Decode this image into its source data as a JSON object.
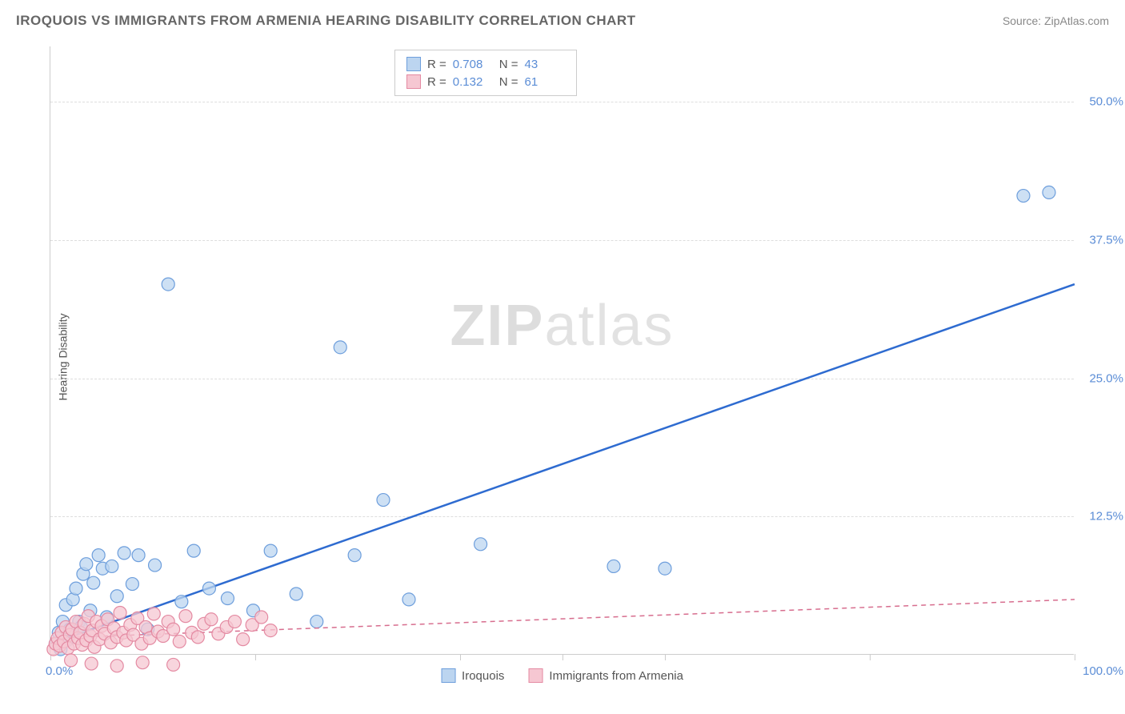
{
  "header": {
    "title": "IROQUOIS VS IMMIGRANTS FROM ARMENIA HEARING DISABILITY CORRELATION CHART",
    "source": "Source: ZipAtlas.com"
  },
  "ylabel": "Hearing Disability",
  "watermark": {
    "bold": "ZIP",
    "light": "atlas"
  },
  "axes": {
    "xlim": [
      0,
      100
    ],
    "ylim": [
      0,
      55
    ],
    "x_origin_label": "0.0%",
    "x_max_label": "100.0%",
    "y_ticks": [
      {
        "value": 12.5,
        "label": "12.5%"
      },
      {
        "value": 25.0,
        "label": "25.0%"
      },
      {
        "value": 37.5,
        "label": "37.5%"
      },
      {
        "value": 50.0,
        "label": "50.0%"
      }
    ],
    "x_tick_positions": [
      0,
      20,
      40,
      50,
      60,
      80,
      100
    ],
    "grid_color": "#dddddd"
  },
  "legend_stats": [
    {
      "swatch_fill": "#bcd5f0",
      "swatch_border": "#6d9edc",
      "r": "0.708",
      "n": "43"
    },
    {
      "swatch_fill": "#f6c7d2",
      "swatch_border": "#e48aa2",
      "r": "0.132",
      "n": "61"
    }
  ],
  "bottom_legend": [
    {
      "swatch_fill": "#bcd5f0",
      "swatch_border": "#6d9edc",
      "label": "Iroquois"
    },
    {
      "swatch_fill": "#f6c7d2",
      "swatch_border": "#e48aa2",
      "label": "Immigrants from Armenia"
    }
  ],
  "series": [
    {
      "name": "iroquois",
      "marker_fill": "#bcd5f0",
      "marker_stroke": "#6d9edc",
      "marker_opacity": 0.75,
      "marker_radius": 8,
      "trend_color": "#2e6bd0",
      "trend_width": 2.5,
      "trend_dash": "none",
      "trend": {
        "x1": 0,
        "y1": 1.0,
        "x2": 100,
        "y2": 33.5
      },
      "points": [
        [
          0.5,
          1.0
        ],
        [
          0.8,
          2.0
        ],
        [
          1.0,
          0.5
        ],
        [
          1.2,
          3.0
        ],
        [
          1.5,
          4.5
        ],
        [
          1.6,
          1.3
        ],
        [
          1.9,
          2.3
        ],
        [
          2.2,
          5.0
        ],
        [
          2.5,
          6.0
        ],
        [
          2.8,
          3.0
        ],
        [
          3.0,
          2.5
        ],
        [
          3.2,
          7.3
        ],
        [
          3.5,
          8.2
        ],
        [
          3.9,
          4.0
        ],
        [
          4.2,
          6.5
        ],
        [
          4.7,
          9.0
        ],
        [
          5.1,
          7.8
        ],
        [
          5.5,
          3.4
        ],
        [
          6.0,
          8.0
        ],
        [
          6.5,
          5.3
        ],
        [
          7.2,
          9.2
        ],
        [
          8.0,
          6.4
        ],
        [
          8.6,
          9.0
        ],
        [
          9.5,
          2.3
        ],
        [
          10.2,
          8.1
        ],
        [
          11.5,
          33.5
        ],
        [
          12.8,
          4.8
        ],
        [
          14.0,
          9.4
        ],
        [
          15.5,
          6.0
        ],
        [
          17.3,
          5.1
        ],
        [
          19.8,
          4.0
        ],
        [
          21.5,
          9.4
        ],
        [
          24.0,
          5.5
        ],
        [
          26.0,
          3.0
        ],
        [
          28.3,
          27.8
        ],
        [
          29.7,
          9.0
        ],
        [
          32.5,
          14.0
        ],
        [
          35.0,
          5.0
        ],
        [
          42.0,
          10.0
        ],
        [
          55.0,
          8.0
        ],
        [
          60.0,
          7.8
        ],
        [
          95.0,
          41.5
        ],
        [
          97.5,
          41.8
        ]
      ]
    },
    {
      "name": "armenia",
      "marker_fill": "#f6c7d2",
      "marker_stroke": "#e48aa2",
      "marker_opacity": 0.75,
      "marker_radius": 8,
      "trend_color": "#d76d8e",
      "trend_width": 1.5,
      "trend_dash": "6 5",
      "trend": {
        "x1": 0,
        "y1": 1.5,
        "x2": 100,
        "y2": 5.0
      },
      "points": [
        [
          0.3,
          0.5
        ],
        [
          0.5,
          1.0
        ],
        [
          0.7,
          1.5
        ],
        [
          0.9,
          0.8
        ],
        [
          1.1,
          2.0
        ],
        [
          1.3,
          1.2
        ],
        [
          1.5,
          2.5
        ],
        [
          1.7,
          0.6
        ],
        [
          1.9,
          1.8
        ],
        [
          2.1,
          2.3
        ],
        [
          2.3,
          1.0
        ],
        [
          2.5,
          3.0
        ],
        [
          2.7,
          1.5
        ],
        [
          2.9,
          2.0
        ],
        [
          3.1,
          0.9
        ],
        [
          3.3,
          2.8
        ],
        [
          3.5,
          1.3
        ],
        [
          3.7,
          3.5
        ],
        [
          3.9,
          1.7
        ],
        [
          4.1,
          2.2
        ],
        [
          4.3,
          0.7
        ],
        [
          4.5,
          3.0
        ],
        [
          4.8,
          1.4
        ],
        [
          5.0,
          2.6
        ],
        [
          5.3,
          1.9
        ],
        [
          5.6,
          3.2
        ],
        [
          5.9,
          1.1
        ],
        [
          6.2,
          2.4
        ],
        [
          6.5,
          1.6
        ],
        [
          6.8,
          3.8
        ],
        [
          7.1,
          2.0
        ],
        [
          7.4,
          1.3
        ],
        [
          7.8,
          2.7
        ],
        [
          8.1,
          1.8
        ],
        [
          8.5,
          3.3
        ],
        [
          8.9,
          1.0
        ],
        [
          9.3,
          2.5
        ],
        [
          9.7,
          1.5
        ],
        [
          10.1,
          3.7
        ],
        [
          10.5,
          2.1
        ],
        [
          11.0,
          1.7
        ],
        [
          11.5,
          3.0
        ],
        [
          12.0,
          2.3
        ],
        [
          12.6,
          1.2
        ],
        [
          13.2,
          3.5
        ],
        [
          13.8,
          2.0
        ],
        [
          14.4,
          1.6
        ],
        [
          15.0,
          2.8
        ],
        [
          15.7,
          3.2
        ],
        [
          16.4,
          1.9
        ],
        [
          17.2,
          2.5
        ],
        [
          18.0,
          3.0
        ],
        [
          18.8,
          1.4
        ],
        [
          19.7,
          2.7
        ],
        [
          20.6,
          3.4
        ],
        [
          21.5,
          2.2
        ],
        [
          4.0,
          -0.8
        ],
        [
          6.5,
          -1.0
        ],
        [
          2.0,
          -0.5
        ],
        [
          9.0,
          -0.7
        ],
        [
          12.0,
          -0.9
        ]
      ]
    }
  ],
  "colors": {
    "title": "#666666",
    "source": "#888888",
    "axis_label": "#555555",
    "tick_label": "#5b8dd6",
    "border": "#cccccc",
    "background": "#ffffff"
  }
}
